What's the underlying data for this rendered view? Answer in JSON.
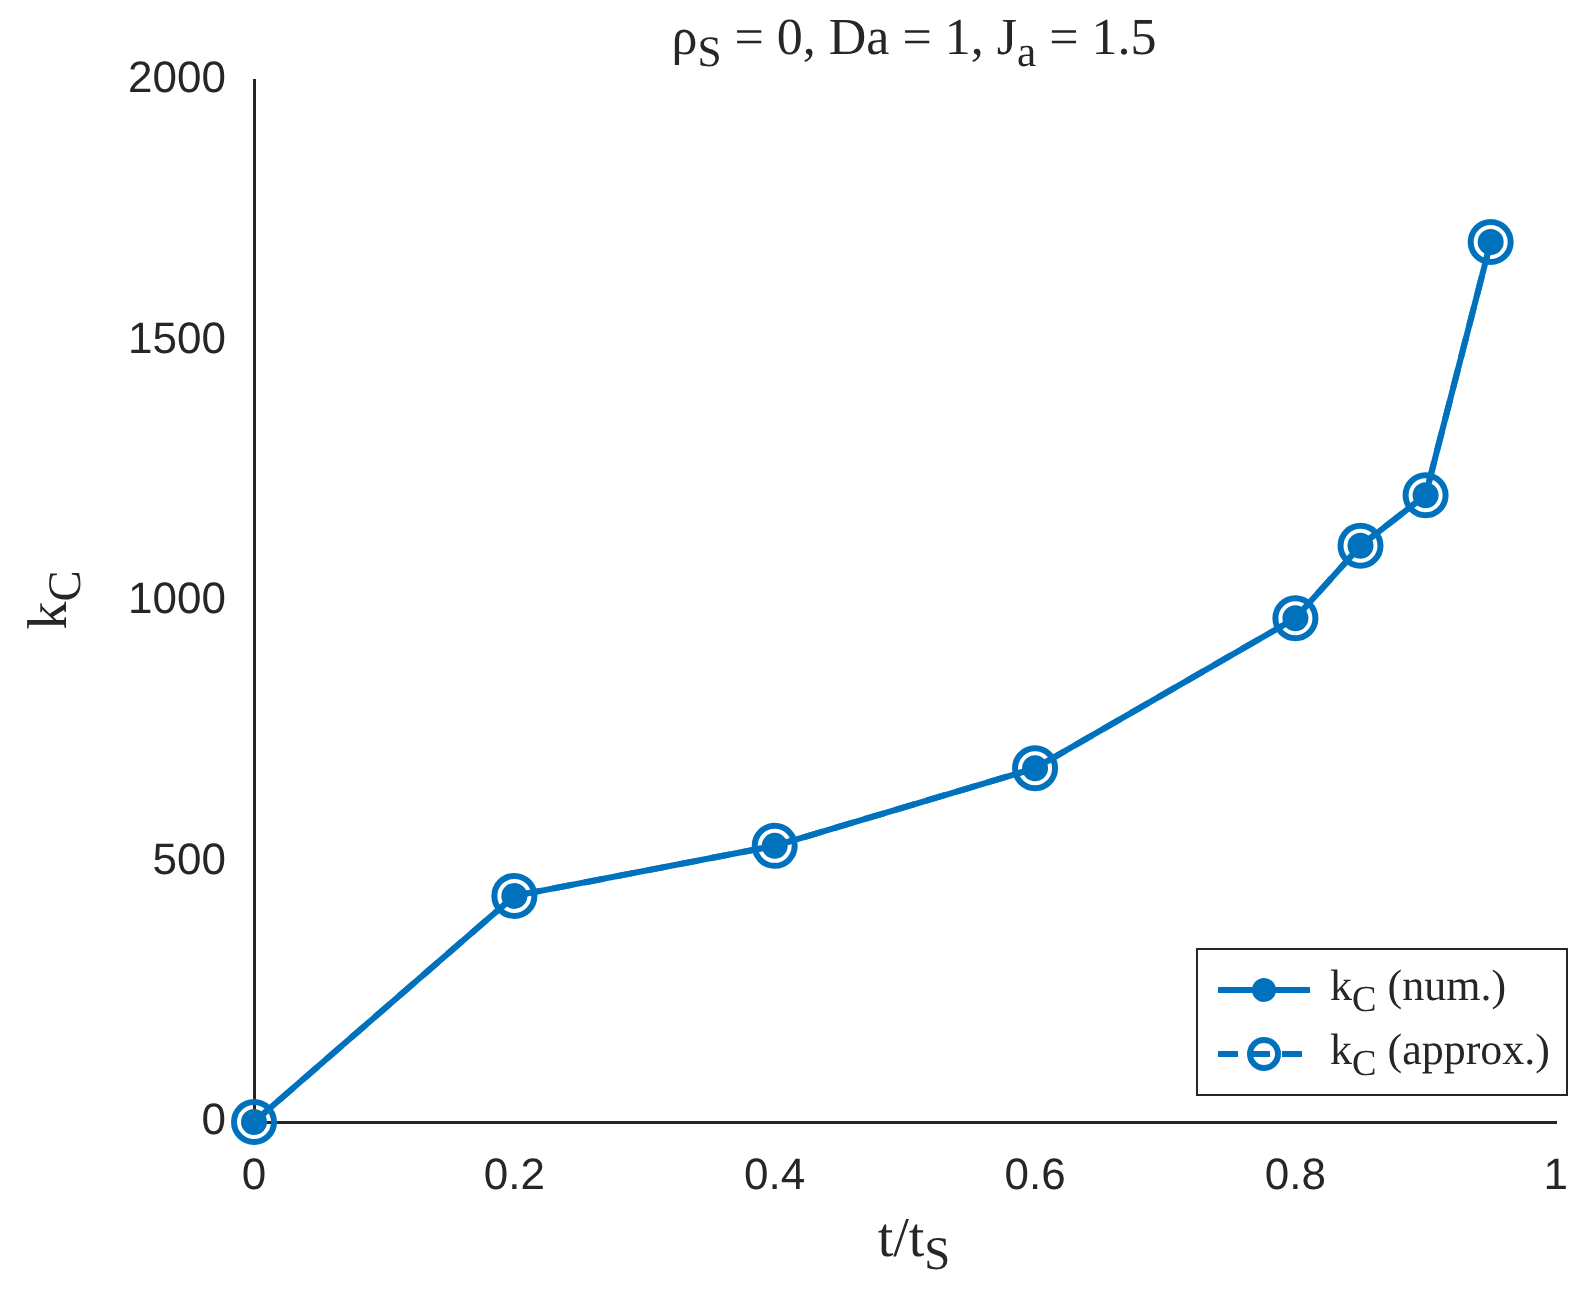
{
  "chart_data": {
    "type": "line",
    "title": "ρ$_{S}$ = 0, Da = 1, J$_{a}$ = 1.5",
    "xlabel": "t/t$_{S}$",
    "ylabel": "k$_{C}$",
    "x": [
      0,
      0.2,
      0.4,
      0.6,
      0.8,
      0.85,
      0.9,
      0.95
    ],
    "series": [
      {
        "name": "k$_{C}$ (num.)",
        "color": "#0072bd",
        "values": [
          0,
          434,
          530,
          679,
          967,
          1106,
          1203,
          1689
        ],
        "line_style": "solid"
      },
      {
        "name": "k$_{C}$ (approx.)",
        "color": "#0072bd",
        "values": [
          0,
          434,
          530,
          679,
          967,
          1106,
          1203,
          1689
        ],
        "line_style": "dashed"
      }
    ],
    "xlim": [
      0,
      1
    ],
    "xticks": [
      0,
      0.2,
      0.4,
      0.6,
      0.8,
      1
    ],
    "ylim": [
      0,
      2000
    ],
    "yticks": [
      0,
      500,
      1000,
      1500,
      2000
    ],
    "marker": "circle",
    "grid": false,
    "legend": "bottom right"
  }
}
